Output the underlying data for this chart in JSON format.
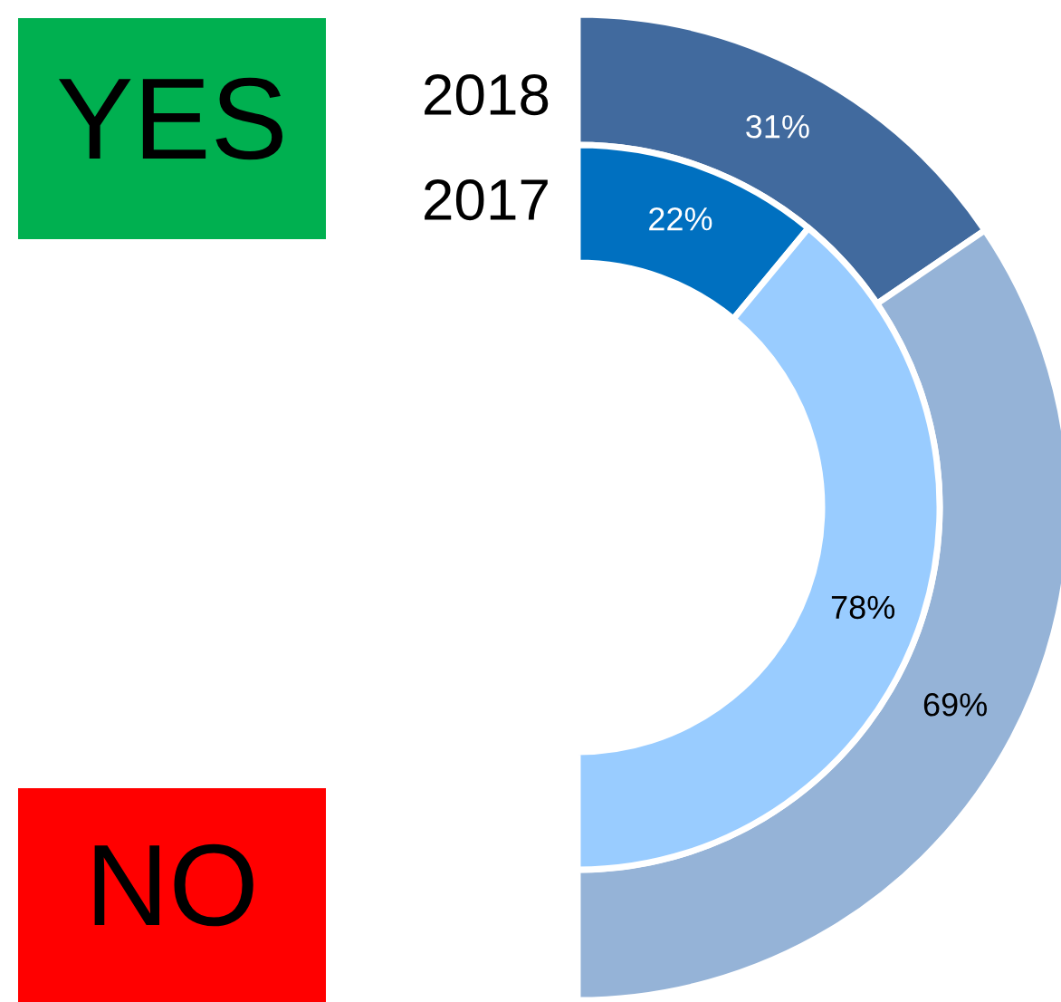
{
  "chart_data": {
    "type": "donut",
    "categories": [
      null,
      null
    ],
    "annotations": [
      "YES",
      "NO"
    ],
    "series": [
      {
        "name": "2018",
        "values": [
          31,
          69
        ],
        "colors": [
          "#416a9e",
          "#95b3d7"
        ],
        "value_labels": [
          "31%",
          "69%"
        ]
      },
      {
        "name": "2017",
        "values": [
          22,
          78
        ],
        "colors": [
          "#0070c0",
          "#99ccff"
        ],
        "value_labels": [
          "22%",
          "78%"
        ]
      }
    ]
  }
}
